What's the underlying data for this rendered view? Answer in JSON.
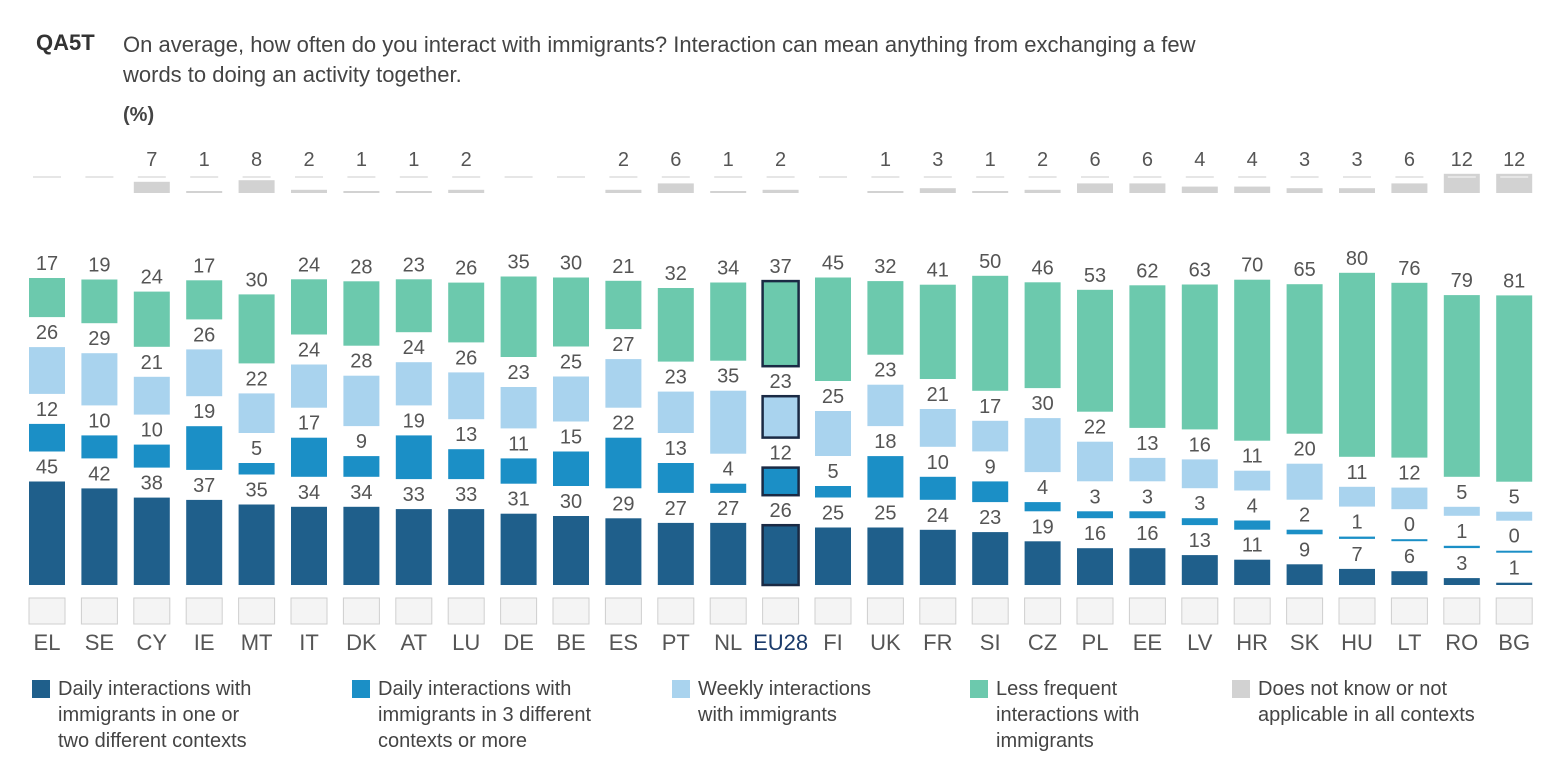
{
  "header": {
    "code": "QA5T",
    "question_line1": "On average, how often do you interact with immigrants? Interaction can mean anything from exchanging a few",
    "question_line2": "words to doing an activity together.",
    "unit": "(%)"
  },
  "chart_data": {
    "type": "bar",
    "stacked": true,
    "ylim": [
      0,
      100
    ],
    "grid": false,
    "legend_position": "bottom",
    "highlight_category": "EU28",
    "categories": [
      "EL",
      "SE",
      "CY",
      "IE",
      "MT",
      "IT",
      "DK",
      "AT",
      "LU",
      "DE",
      "BE",
      "ES",
      "PT",
      "NL",
      "EU28",
      "FI",
      "UK",
      "FR",
      "SI",
      "CZ",
      "PL",
      "EE",
      "LV",
      "HR",
      "SK",
      "HU",
      "LT",
      "RO",
      "BG"
    ],
    "series": [
      {
        "name": "Daily interactions with immigrants in one or two different contexts",
        "color": "#1f5f8b",
        "values": [
          45,
          42,
          38,
          37,
          35,
          34,
          34,
          33,
          33,
          31,
          30,
          29,
          27,
          27,
          26,
          25,
          25,
          24,
          23,
          19,
          16,
          16,
          13,
          11,
          9,
          7,
          6,
          3,
          1
        ]
      },
      {
        "name": "Daily interactions with immigrants in 3 different contexts or more",
        "color": "#1b8fc6",
        "values": [
          12,
          10,
          10,
          19,
          5,
          17,
          9,
          19,
          13,
          11,
          15,
          22,
          13,
          4,
          12,
          5,
          18,
          10,
          9,
          4,
          3,
          3,
          3,
          4,
          2,
          1,
          0,
          1,
          0
        ]
      },
      {
        "name": "Weekly interactions with immigrants",
        "color": "#a9d3ee",
        "values": [
          26,
          29,
          21,
          26,
          22,
          24,
          28,
          24,
          26,
          23,
          25,
          27,
          23,
          35,
          23,
          25,
          23,
          21,
          17,
          30,
          22,
          13,
          16,
          11,
          20,
          11,
          12,
          5,
          5
        ]
      },
      {
        "name": "Less frequent interactions with immigrants",
        "color": "#6cc9ad",
        "values": [
          17,
          19,
          24,
          17,
          30,
          24,
          28,
          23,
          26,
          35,
          30,
          21,
          32,
          34,
          37,
          45,
          32,
          41,
          50,
          46,
          53,
          62,
          63,
          70,
          65,
          80,
          76,
          79,
          81
        ]
      },
      {
        "name": "Does not know or not applicable in all contexts",
        "color": "#d2d2d2",
        "values": [
          0,
          0,
          7,
          1,
          8,
          2,
          1,
          1,
          2,
          0,
          0,
          2,
          6,
          1,
          2,
          0,
          1,
          3,
          1,
          2,
          6,
          6,
          4,
          4,
          3,
          3,
          6,
          12,
          12
        ]
      }
    ]
  },
  "legend": [
    {
      "lines": [
        "Daily interactions with",
        "immigrants in one or",
        "two different contexts"
      ]
    },
    {
      "lines": [
        "Daily interactions with",
        "immigrants in 3 different",
        "contexts or more"
      ]
    },
    {
      "lines": [
        "Weekly interactions",
        "with immigrants"
      ]
    },
    {
      "lines": [
        "Less frequent",
        "interactions with",
        "immigrants"
      ]
    },
    {
      "lines": [
        "Does not know or not",
        "applicable in all contexts"
      ]
    }
  ]
}
